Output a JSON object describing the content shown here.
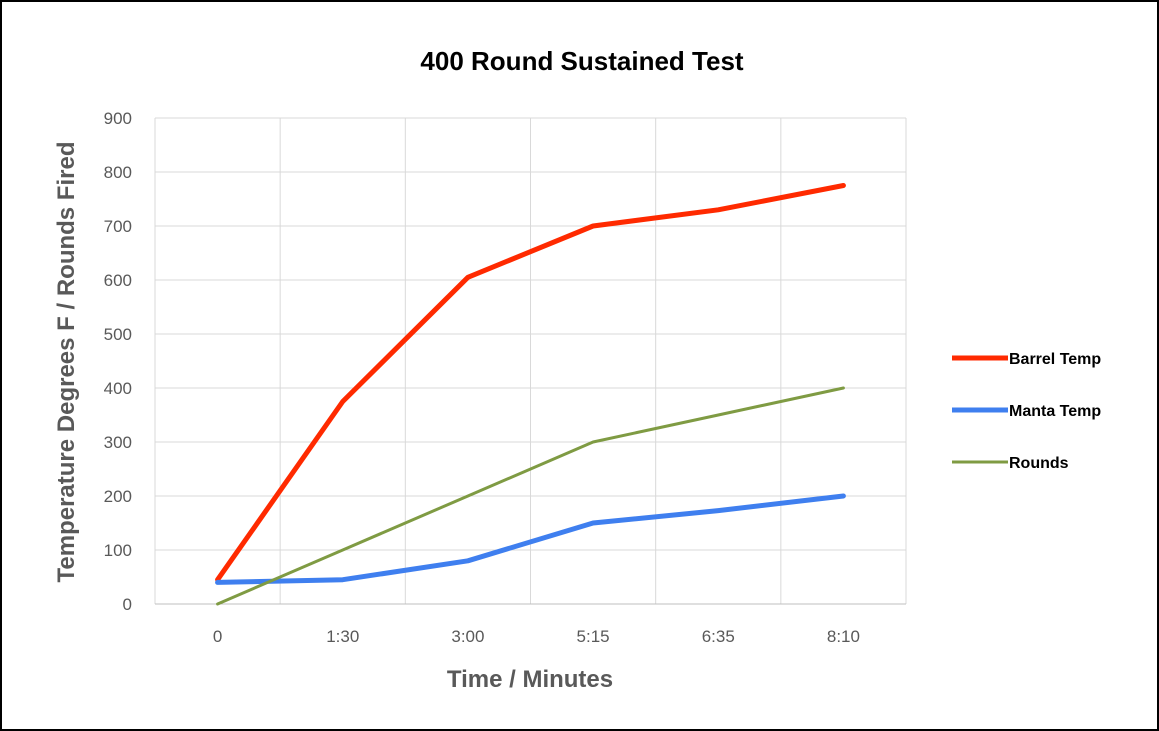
{
  "chart_data": {
    "type": "line",
    "title": "400 Round Sustained Test",
    "xlabel": "Time / Minutes",
    "ylabel": "Temperature Degrees F / Rounds Fired",
    "categories": [
      "0",
      "1:30",
      "3:00",
      "5:15",
      "6:35",
      "8:10"
    ],
    "ylim": [
      0,
      900
    ],
    "yticks": [
      0,
      100,
      200,
      300,
      400,
      500,
      600,
      700,
      800,
      900
    ],
    "grid": true,
    "legend_position": "right",
    "series": [
      {
        "name": "Barrel Temp",
        "color": "#ff2a00",
        "values": [
          45,
          375,
          605,
          700,
          730,
          775
        ]
      },
      {
        "name": "Manta Temp",
        "color": "#3f7fef",
        "values": [
          40,
          45,
          80,
          150,
          173,
          200
        ]
      },
      {
        "name": "Rounds",
        "color": "#7f9b43",
        "values": [
          0,
          100,
          200,
          300,
          350,
          400
        ]
      }
    ]
  }
}
